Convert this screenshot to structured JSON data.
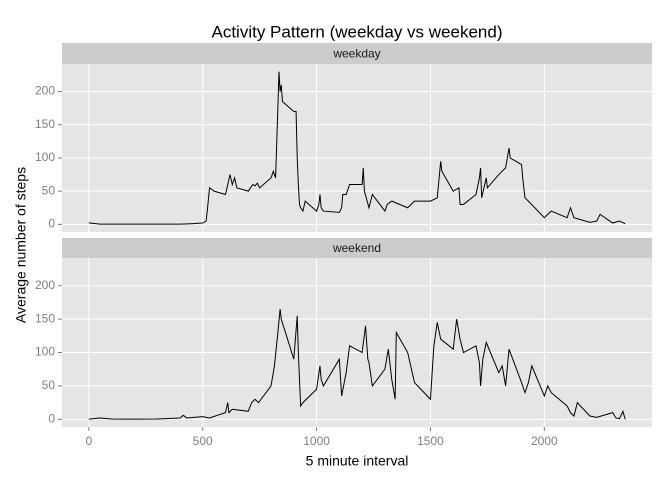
{
  "chart_data": {
    "type": "line",
    "title": "Activity Pattern (weekday vs weekend)",
    "xlabel": "5 minute interval",
    "ylabel": "Average number of steps",
    "xlim": [
      -117.75,
      2472.75
    ],
    "xticks": [
      0,
      500,
      1000,
      1500,
      2000
    ],
    "ylim": [
      -11.5,
      241.5
    ],
    "yticks": [
      0,
      50,
      100,
      150,
      200
    ],
    "grid": true,
    "series": [
      {
        "name": "weekday",
        "color": "#000000",
        "x": [
          0,
          50,
          100,
          200,
          300,
          400,
          450,
          500,
          515,
          520,
          530,
          550,
          600,
          610,
          620,
          630,
          640,
          650,
          700,
          710,
          720,
          730,
          740,
          750,
          800,
          810,
          820,
          830,
          835,
          840,
          845,
          850,
          900,
          910,
          915,
          920,
          925,
          930,
          940,
          950,
          1000,
          1010,
          1015,
          1020,
          1030,
          1100,
          1110,
          1115,
          1130,
          1145,
          1200,
          1205,
          1210,
          1230,
          1245,
          1300,
          1310,
          1330,
          1400,
          1430,
          1500,
          1530,
          1545,
          1550,
          1600,
          1625,
          1630,
          1645,
          1700,
          1715,
          1720,
          1725,
          1745,
          1750,
          1800,
          1830,
          1845,
          1850,
          1900,
          1905,
          1915,
          1930,
          2000,
          2015,
          2030,
          2100,
          2115,
          2130,
          2200,
          2230,
          2245,
          2300,
          2330,
          2355
        ],
        "values": [
          2.3,
          0.4,
          0.3,
          0.4,
          0.3,
          0.3,
          1,
          2,
          5,
          20,
          55,
          50,
          45,
          60,
          75,
          60,
          70,
          55,
          50,
          55,
          60,
          58,
          62,
          55,
          70,
          80,
          70,
          175,
          230,
          200,
          210,
          185,
          170,
          170,
          100,
          60,
          30,
          25,
          20,
          35,
          20,
          30,
          45,
          25,
          20,
          18,
          25,
          45,
          45,
          60,
          60,
          85,
          50,
          25,
          45,
          20,
          30,
          35,
          25,
          35,
          35,
          40,
          95,
          80,
          50,
          55,
          30,
          30,
          45,
          70,
          85,
          40,
          70,
          55,
          75,
          85,
          115,
          100,
          90,
          70,
          40,
          35,
          10,
          15,
          20,
          10,
          25,
          10,
          3,
          5,
          15,
          2,
          5,
          1
        ]
      },
      {
        "name": "weekend",
        "color": "#000000",
        "x": [
          0,
          50,
          100,
          200,
          300,
          400,
          415,
          430,
          500,
          530,
          600,
          610,
          615,
          630,
          700,
          715,
          730,
          745,
          800,
          815,
          830,
          840,
          845,
          900,
          915,
          920,
          930,
          940,
          1000,
          1015,
          1020,
          1030,
          1100,
          1110,
          1130,
          1145,
          1200,
          1215,
          1225,
          1230,
          1245,
          1300,
          1315,
          1330,
          1345,
          1350,
          1400,
          1430,
          1500,
          1515,
          1530,
          1545,
          1600,
          1615,
          1630,
          1645,
          1700,
          1715,
          1720,
          1730,
          1745,
          1800,
          1815,
          1830,
          1845,
          1900,
          1915,
          1930,
          1945,
          2000,
          2015,
          2030,
          2100,
          2115,
          2130,
          2145,
          2200,
          2230,
          2300,
          2315,
          2330,
          2345,
          2355
        ],
        "values": [
          0.2,
          2,
          0.5,
          0.3,
          0.5,
          2,
          6,
          2,
          4,
          2,
          10,
          25,
          10,
          15,
          12,
          25,
          30,
          25,
          50,
          80,
          130,
          165,
          150,
          90,
          155,
          100,
          20,
          25,
          45,
          80,
          60,
          50,
          90,
          35,
          70,
          110,
          100,
          140,
          90,
          85,
          50,
          75,
          105,
          60,
          30,
          130,
          100,
          55,
          30,
          110,
          145,
          120,
          105,
          150,
          120,
          100,
          110,
          85,
          50,
          90,
          115,
          70,
          80,
          50,
          105,
          55,
          40,
          55,
          80,
          35,
          50,
          40,
          20,
          10,
          5,
          25,
          5,
          3,
          10,
          2,
          1,
          12,
          0
        ]
      }
    ]
  }
}
